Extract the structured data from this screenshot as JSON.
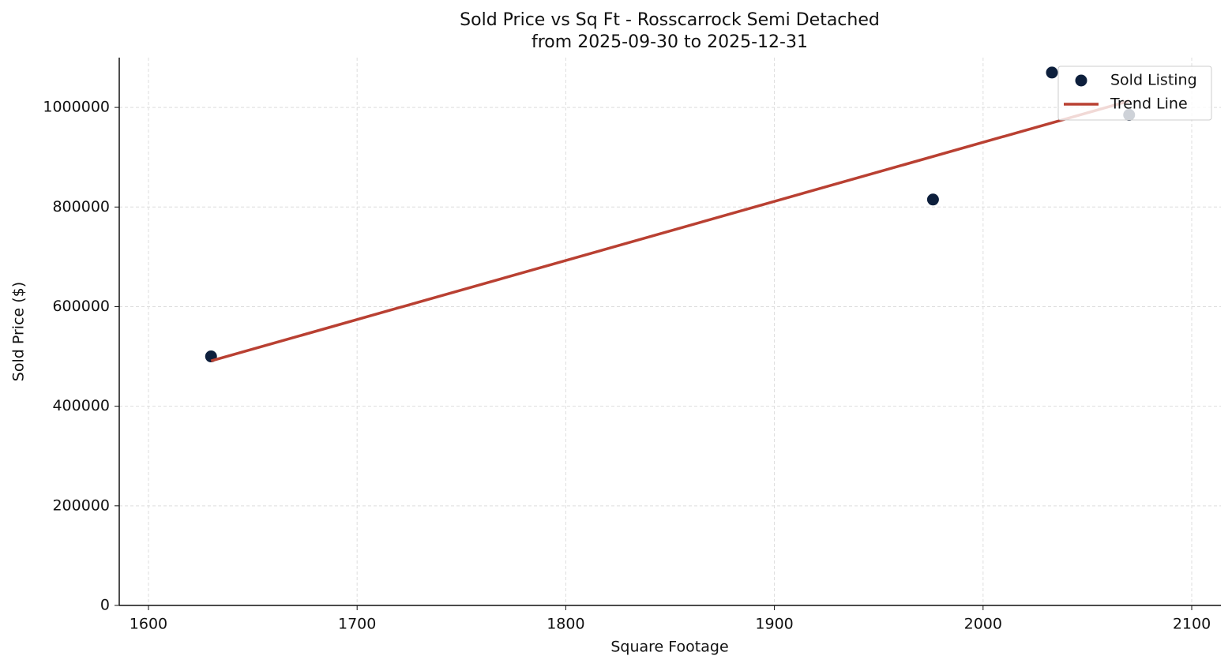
{
  "chart_data": {
    "type": "scatter",
    "title": "Sold Price vs Sq Ft - Rosscarrock Semi Detached",
    "subtitle": "from 2025-09-30 to 2025-12-31",
    "x_label": "Square Footage",
    "y_label": "Sold Price ($)",
    "xlim": [
      1586,
      2114
    ],
    "xticks": [
      1600,
      1700,
      1800,
      1900,
      2000,
      2100
    ],
    "ylim": [
      0,
      1100000
    ],
    "yticks": [
      0,
      200000,
      400000,
      600000,
      800000,
      1000000
    ],
    "grid": true,
    "legend": "upper right",
    "series": [
      {
        "name": "Sold Listing",
        "type": "scatter",
        "color": "#0d1f3c",
        "x": [
          1630,
          1976,
          2033,
          2070
        ],
        "values": [
          500000,
          815000,
          1070000,
          985000
        ]
      },
      {
        "name": "Trend Line",
        "type": "line",
        "color": "#b94032",
        "x": [
          1630,
          2070
        ],
        "values": [
          491000,
          1013000
        ]
      }
    ]
  }
}
